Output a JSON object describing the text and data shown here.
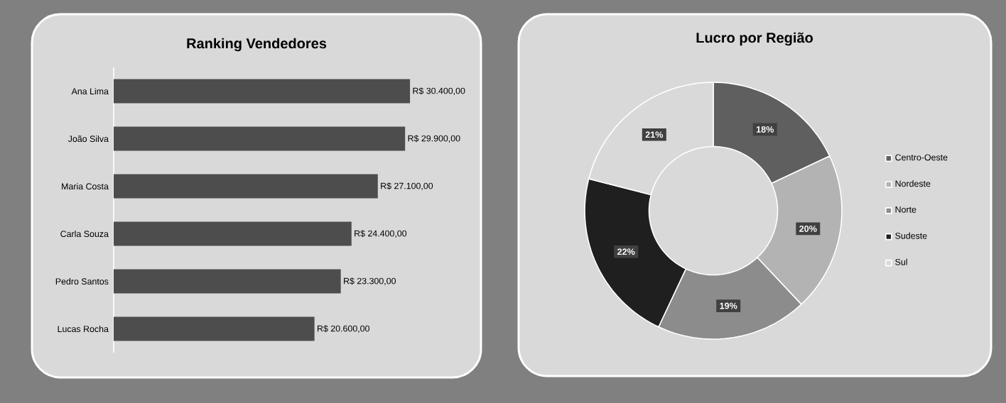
{
  "chart_data": [
    {
      "type": "bar",
      "orientation": "horizontal",
      "title": "Ranking Vendedores",
      "categories": [
        "Ana Lima",
        "João Silva",
        "Maria Costa",
        "Carla Souza",
        "Pedro Santos",
        "Lucas Rocha"
      ],
      "values": [
        30400,
        29900,
        27100,
        24400,
        23300,
        20600
      ],
      "value_labels": [
        "R$ 30.400,00",
        "R$ 29.900,00",
        "R$ 27.100,00",
        "R$ 24.400,00",
        "R$ 23.300,00",
        "R$ 20.600,00"
      ],
      "color": "#4d4d4d",
      "tick_labels": "y"
    },
    {
      "type": "donut",
      "title": "Lucro por Região",
      "categories": [
        "Centro-Oeste",
        "Nordeste",
        "Norte",
        "Sudeste",
        "Sul"
      ],
      "values": [
        18,
        20,
        19,
        22,
        21
      ],
      "value_labels": [
        "18%",
        "20%",
        "19%",
        "22%",
        "21%"
      ],
      "colors": [
        "#5f5f5f",
        "#b3b3b3",
        "#8c8c8c",
        "#1f1f1f",
        "#d9d9d9"
      ],
      "legend": "right"
    }
  ]
}
